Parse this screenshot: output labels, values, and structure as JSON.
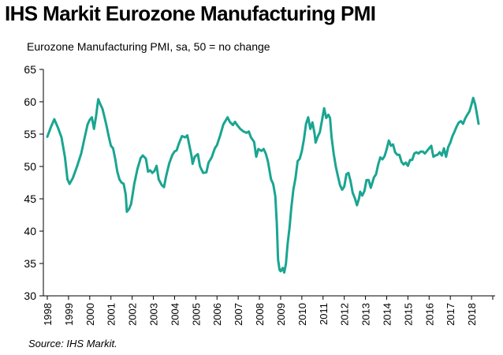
{
  "title": "IHS Markit Eurozone Manufacturing PMI",
  "source": "Source: IHS Markit.",
  "colors": {
    "line": "#1aa591",
    "axis": "#000000"
  },
  "chart_data": {
    "type": "line",
    "ylabel": "Eurozone Manufacturing PMI, sa, 50 = no change",
    "xlabel": "",
    "ylim": [
      30,
      65
    ],
    "yticks": [
      30,
      35,
      40,
      45,
      50,
      55,
      60,
      65
    ],
    "xlim": [
      1998.0,
      2019.0
    ],
    "xtick_labels": [
      "1998",
      "1999",
      "2000",
      "2001",
      "2002",
      "2003",
      "2004",
      "2005",
      "2006",
      "2007",
      "2008",
      "2009",
      "2010",
      "2011",
      "2012",
      "2013",
      "2014",
      "2015",
      "2016",
      "2017",
      "2018"
    ],
    "grid": false,
    "legend": "none",
    "series": [
      {
        "points": [
          [
            1998.0,
            54.6
          ],
          [
            1998.17,
            56.1
          ],
          [
            1998.33,
            57.3
          ],
          [
            1998.5,
            56.0
          ],
          [
            1998.67,
            54.5
          ],
          [
            1998.83,
            51.5
          ],
          [
            1998.95,
            48.0
          ],
          [
            1999.05,
            47.3
          ],
          [
            1999.2,
            48.2
          ],
          [
            1999.4,
            50.0
          ],
          [
            1999.6,
            52.0
          ],
          [
            1999.75,
            54.3
          ],
          [
            1999.9,
            56.5
          ],
          [
            2000.0,
            57.2
          ],
          [
            2000.1,
            57.6
          ],
          [
            2000.2,
            55.8
          ],
          [
            2000.3,
            57.8
          ],
          [
            2000.4,
            60.4
          ],
          [
            2000.5,
            59.6
          ],
          [
            2000.6,
            58.9
          ],
          [
            2000.7,
            57.6
          ],
          [
            2000.8,
            56.2
          ],
          [
            2000.9,
            54.6
          ],
          [
            2001.0,
            53.2
          ],
          [
            2001.1,
            52.8
          ],
          [
            2001.2,
            51.2
          ],
          [
            2001.3,
            49.2
          ],
          [
            2001.4,
            48.0
          ],
          [
            2001.5,
            47.5
          ],
          [
            2001.6,
            47.3
          ],
          [
            2001.7,
            45.6
          ],
          [
            2001.75,
            43.0
          ],
          [
            2001.85,
            43.4
          ],
          [
            2001.95,
            44.2
          ],
          [
            2002.1,
            47.3
          ],
          [
            2002.25,
            49.6
          ],
          [
            2002.4,
            51.3
          ],
          [
            2002.5,
            51.7
          ],
          [
            2002.65,
            51.2
          ],
          [
            2002.75,
            49.2
          ],
          [
            2002.85,
            49.4
          ],
          [
            2002.95,
            49.0
          ],
          [
            2003.05,
            49.3
          ],
          [
            2003.15,
            50.1
          ],
          [
            2003.25,
            48.0
          ],
          [
            2003.4,
            47.1
          ],
          [
            2003.5,
            46.8
          ],
          [
            2003.6,
            48.5
          ],
          [
            2003.75,
            50.5
          ],
          [
            2003.9,
            51.8
          ],
          [
            2004.0,
            52.3
          ],
          [
            2004.1,
            52.5
          ],
          [
            2004.2,
            53.5
          ],
          [
            2004.35,
            54.7
          ],
          [
            2004.5,
            54.5
          ],
          [
            2004.6,
            54.8
          ],
          [
            2004.7,
            53.2
          ],
          [
            2004.8,
            51.6
          ],
          [
            2004.85,
            50.4
          ],
          [
            2004.95,
            51.5
          ],
          [
            2005.1,
            51.9
          ],
          [
            2005.2,
            50.0
          ],
          [
            2005.35,
            49.0
          ],
          [
            2005.5,
            49.1
          ],
          [
            2005.6,
            50.6
          ],
          [
            2005.75,
            51.4
          ],
          [
            2005.9,
            52.8
          ],
          [
            2006.0,
            53.3
          ],
          [
            2006.15,
            54.8
          ],
          [
            2006.3,
            56.5
          ],
          [
            2006.5,
            57.6
          ],
          [
            2006.6,
            56.9
          ],
          [
            2006.75,
            56.4
          ],
          [
            2006.85,
            56.9
          ],
          [
            2006.95,
            56.4
          ],
          [
            2007.1,
            55.8
          ],
          [
            2007.25,
            55.4
          ],
          [
            2007.4,
            55.2
          ],
          [
            2007.5,
            55.4
          ],
          [
            2007.6,
            54.5
          ],
          [
            2007.75,
            53.8
          ],
          [
            2007.85,
            51.5
          ],
          [
            2007.95,
            52.7
          ],
          [
            2008.1,
            52.4
          ],
          [
            2008.2,
            52.7
          ],
          [
            2008.3,
            52.0
          ],
          [
            2008.4,
            50.8
          ],
          [
            2008.55,
            48.0
          ],
          [
            2008.65,
            47.3
          ],
          [
            2008.75,
            45.4
          ],
          [
            2008.82,
            41.2
          ],
          [
            2008.88,
            35.6
          ],
          [
            2008.95,
            34.0
          ],
          [
            2009.0,
            33.8
          ],
          [
            2009.1,
            34.3
          ],
          [
            2009.17,
            33.6
          ],
          [
            2009.25,
            35.0
          ],
          [
            2009.33,
            38.0
          ],
          [
            2009.42,
            40.6
          ],
          [
            2009.5,
            43.5
          ],
          [
            2009.6,
            46.4
          ],
          [
            2009.7,
            48.2
          ],
          [
            2009.8,
            50.8
          ],
          [
            2009.9,
            51.2
          ],
          [
            2010.0,
            52.4
          ],
          [
            2010.1,
            54.2
          ],
          [
            2010.2,
            56.6
          ],
          [
            2010.3,
            57.6
          ],
          [
            2010.4,
            55.8
          ],
          [
            2010.5,
            56.8
          ],
          [
            2010.6,
            55.1
          ],
          [
            2010.65,
            53.7
          ],
          [
            2010.75,
            54.6
          ],
          [
            2010.85,
            55.3
          ],
          [
            2010.95,
            57.1
          ],
          [
            2011.05,
            59.0
          ],
          [
            2011.15,
            57.5
          ],
          [
            2011.25,
            58.0
          ],
          [
            2011.33,
            57.5
          ],
          [
            2011.4,
            54.6
          ],
          [
            2011.5,
            52.0
          ],
          [
            2011.6,
            50.0
          ],
          [
            2011.7,
            48.5
          ],
          [
            2011.8,
            47.1
          ],
          [
            2011.9,
            46.4
          ],
          [
            2012.0,
            46.9
          ],
          [
            2012.1,
            48.8
          ],
          [
            2012.2,
            49.0
          ],
          [
            2012.3,
            47.7
          ],
          [
            2012.4,
            45.9
          ],
          [
            2012.5,
            45.1
          ],
          [
            2012.6,
            44.0
          ],
          [
            2012.7,
            45.1
          ],
          [
            2012.75,
            46.1
          ],
          [
            2012.85,
            45.5
          ],
          [
            2012.95,
            46.2
          ],
          [
            2013.05,
            47.9
          ],
          [
            2013.15,
            47.9
          ],
          [
            2013.25,
            46.7
          ],
          [
            2013.4,
            48.3
          ],
          [
            2013.5,
            48.8
          ],
          [
            2013.6,
            50.3
          ],
          [
            2013.7,
            51.4
          ],
          [
            2013.8,
            51.1
          ],
          [
            2013.9,
            51.6
          ],
          [
            2014.0,
            52.7
          ],
          [
            2014.1,
            54.0
          ],
          [
            2014.2,
            53.2
          ],
          [
            2014.3,
            53.4
          ],
          [
            2014.4,
            52.2
          ],
          [
            2014.5,
            51.8
          ],
          [
            2014.6,
            51.8
          ],
          [
            2014.7,
            50.7
          ],
          [
            2014.8,
            50.3
          ],
          [
            2014.9,
            50.6
          ],
          [
            2015.0,
            50.1
          ],
          [
            2015.1,
            51.0
          ],
          [
            2015.2,
            51.0
          ],
          [
            2015.3,
            52.0
          ],
          [
            2015.4,
            52.2
          ],
          [
            2015.5,
            52.0
          ],
          [
            2015.6,
            52.3
          ],
          [
            2015.7,
            52.3
          ],
          [
            2015.8,
            52.0
          ],
          [
            2015.9,
            52.4
          ],
          [
            2016.0,
            52.8
          ],
          [
            2016.1,
            53.2
          ],
          [
            2016.2,
            51.5
          ],
          [
            2016.3,
            51.7
          ],
          [
            2016.4,
            51.8
          ],
          [
            2016.5,
            52.2
          ],
          [
            2016.6,
            51.7
          ],
          [
            2016.7,
            52.8
          ],
          [
            2016.8,
            51.5
          ],
          [
            2016.9,
            53.0
          ],
          [
            2017.0,
            53.7
          ],
          [
            2017.1,
            54.7
          ],
          [
            2017.2,
            55.4
          ],
          [
            2017.3,
            56.2
          ],
          [
            2017.4,
            56.8
          ],
          [
            2017.5,
            57.0
          ],
          [
            2017.6,
            56.6
          ],
          [
            2017.7,
            57.4
          ],
          [
            2017.8,
            58.0
          ],
          [
            2017.9,
            58.5
          ],
          [
            2018.0,
            59.6
          ],
          [
            2018.08,
            60.6
          ],
          [
            2018.17,
            59.6
          ],
          [
            2018.25,
            58.2
          ],
          [
            2018.33,
            56.6
          ]
        ]
      }
    ]
  }
}
